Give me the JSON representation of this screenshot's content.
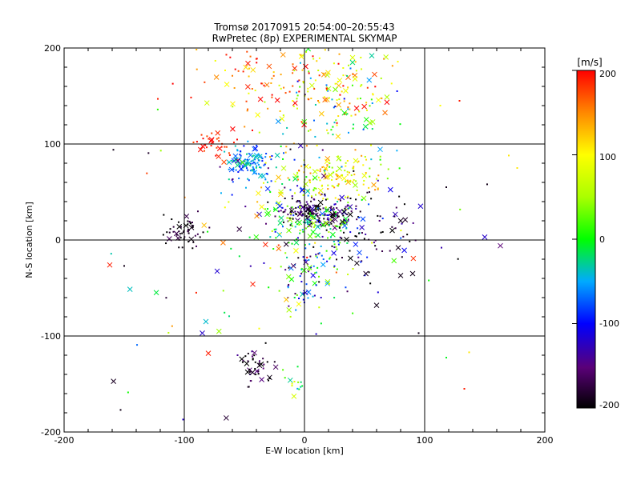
{
  "chart_data": {
    "type": "scatter",
    "title": "Tromsø 20170915 20:54:00–20:55:43",
    "subtitle": "RwPretec (8p) EXPERIMENTAL SKYMAP",
    "xlabel": "E-W location [km]",
    "ylabel": "N-S location [km]",
    "xlim": [
      -200,
      200
    ],
    "ylim": [
      -200,
      200
    ],
    "xticks": [
      "-200",
      "-100",
      "0",
      "100",
      "200"
    ],
    "yticks": [
      "-200",
      "-100",
      "0",
      "100",
      "200"
    ],
    "grid": true,
    "colorbar": {
      "label": "[m/s]",
      "range": [
        -200,
        200
      ],
      "ticks": [
        "200",
        "100",
        "0",
        "-100",
        "-200"
      ]
    },
    "point_count_note": "",
    "clusters": [
      {
        "cx": 10,
        "cy": 28,
        "sx": 15,
        "sy": 8,
        "n": 170,
        "vmean": -170,
        "vspread": 60
      },
      {
        "cx": -98,
        "cy": 8,
        "sx": 9,
        "sy": 8,
        "n": 55,
        "vmean": -190,
        "vspread": 30
      },
      {
        "cx": -45,
        "cy": 80,
        "sx": 10,
        "sy": 8,
        "n": 110,
        "vmean": -60,
        "vspread": 40
      },
      {
        "cx": 25,
        "cy": 65,
        "sx": 20,
        "sy": 12,
        "n": 120,
        "vmean": 90,
        "vspread": 60
      },
      {
        "cx": 5,
        "cy": 15,
        "sx": 18,
        "sy": 12,
        "n": 90,
        "vmean": 10,
        "vspread": 50
      },
      {
        "cx": -75,
        "cy": 100,
        "sx": 8,
        "sy": 8,
        "n": 35,
        "vmean": 190,
        "vspread": 20
      },
      {
        "cx": -40,
        "cy": -130,
        "sx": 9,
        "sy": 10,
        "n": 45,
        "vmean": -175,
        "vspread": 40
      },
      {
        "cx": -8,
        "cy": -150,
        "sx": 6,
        "sy": 7,
        "n": 14,
        "vmean": 20,
        "vspread": 80
      },
      {
        "cx": -5,
        "cy": 165,
        "sx": 40,
        "sy": 20,
        "n": 160,
        "vmean": 140,
        "vspread": 90
      },
      {
        "cx": 30,
        "cy": 130,
        "sx": 25,
        "sy": 25,
        "n": 90,
        "vmean": 20,
        "vspread": 130
      },
      {
        "cx": 0,
        "cy": -40,
        "sx": 15,
        "sy": 20,
        "n": 80,
        "vmean": -50,
        "vspread": 120
      },
      {
        "cx": 50,
        "cy": 10,
        "sx": 25,
        "sy": 25,
        "n": 100,
        "vmean": -150,
        "vspread": 80
      },
      {
        "cx": -20,
        "cy": 40,
        "sx": 25,
        "sy": 30,
        "n": 90,
        "vmean": 0,
        "vspread": 160
      },
      {
        "cx": 0,
        "cy": 0,
        "sx": 90,
        "sy": 100,
        "n": 80,
        "vmean": 0,
        "vspread": 200
      }
    ],
    "outliers": [
      {
        "x": -162,
        "y": -26,
        "v": 190,
        "m": "x"
      },
      {
        "x": -150,
        "y": -27,
        "v": -190,
        "m": "."
      },
      {
        "x": -159,
        "y": 94,
        "v": -190,
        "m": "."
      },
      {
        "x": -122,
        "y": 147,
        "v": 190,
        "m": "."
      },
      {
        "x": 150,
        "y": 3,
        "v": -120,
        "m": "x"
      },
      {
        "x": 163,
        "y": -6,
        "v": -150,
        "m": "x"
      },
      {
        "x": 113,
        "y": 140,
        "v": 100,
        "m": "."
      },
      {
        "x": 129,
        "y": 145,
        "v": 190,
        "m": "."
      },
      {
        "x": 170,
        "y": 88,
        "v": 110,
        "m": "."
      },
      {
        "x": 177,
        "y": 75,
        "v": 110,
        "m": "."
      },
      {
        "x": 152,
        "y": 58,
        "v": -190,
        "m": "."
      },
      {
        "x": 118,
        "y": 55,
        "v": -190,
        "m": "."
      },
      {
        "x": 114,
        "y": -8,
        "v": -130,
        "m": "."
      },
      {
        "x": 95,
        "y": -97,
        "v": -190,
        "m": "."
      },
      {
        "x": 137,
        "y": -117,
        "v": 110,
        "m": "."
      },
      {
        "x": 133,
        "y": -155,
        "v": 190,
        "m": "."
      },
      {
        "x": -153,
        "y": -177,
        "v": -190,
        "m": "."
      },
      {
        "x": -101,
        "y": -187,
        "v": -120,
        "m": "."
      },
      {
        "x": -85,
        "y": -97,
        "v": -120,
        "m": "x"
      },
      {
        "x": -80,
        "y": -118,
        "v": 190,
        "m": "x"
      },
      {
        "x": -82,
        "y": -85,
        "v": -40,
        "m": "x"
      },
      {
        "x": -43,
        "y": -46,
        "v": 190,
        "m": "x"
      },
      {
        "x": 78,
        "y": -8,
        "v": -190,
        "m": "x"
      },
      {
        "x": 90,
        "y": -35,
        "v": -190,
        "m": "x"
      },
      {
        "x": 80,
        "y": -37,
        "v": -190,
        "m": "x"
      },
      {
        "x": 60,
        "y": -68,
        "v": -190,
        "m": "x"
      },
      {
        "x": 80,
        "y": 20,
        "v": -190,
        "m": "x"
      },
      {
        "x": 40,
        "y": 190,
        "v": 80,
        "m": "x"
      },
      {
        "x": 40,
        "y": 185,
        "v": -20,
        "m": "x"
      },
      {
        "x": 56,
        "y": 192,
        "v": -30,
        "m": "x"
      },
      {
        "x": -65,
        "y": 193,
        "v": 190,
        "m": "."
      },
      {
        "x": -94,
        "y": 13,
        "v": -190,
        "m": "x"
      }
    ]
  }
}
